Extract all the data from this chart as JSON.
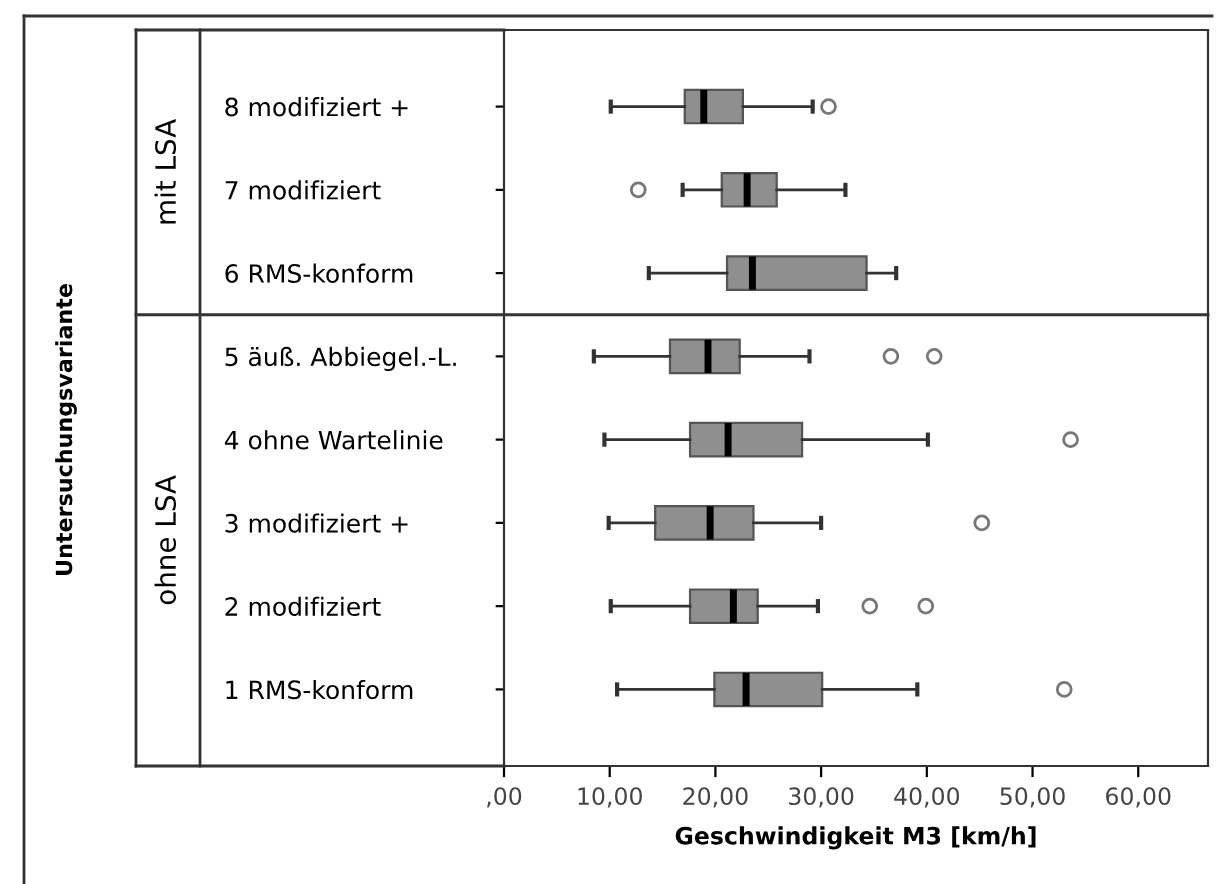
{
  "chart_data": {
    "type": "box",
    "orientation": "horizontal",
    "xlabel": "Geschwindigkeit M3 [km/h]",
    "categories": [
      "8 modifiziert +",
      "7 modifiziert",
      "6 RMS-konform",
      "5 äuß. Abbiegel.-L.",
      "4 ohne Wartelinie",
      "3 modifiziert +",
      "2 modifiziert",
      "1 RMS-konform"
    ],
    "color": "#8f8f8f",
    "boxes": [
      {
        "low": 10.1,
        "q1": 17.1,
        "median": 18.9,
        "q3": 22.6,
        "high": 29.2,
        "outliers": [
          30.7
        ]
      },
      {
        "low": 16.9,
        "q1": 20.6,
        "median": 23.0,
        "q3": 25.8,
        "high": 32.3,
        "outliers": [
          12.7
        ]
      },
      {
        "low": 13.7,
        "q1": 21.1,
        "median": 23.5,
        "q3": 34.3,
        "high": 37.1
      },
      {
        "low": 8.5,
        "q1": 15.7,
        "median": 19.3,
        "q3": 22.3,
        "high": 28.9,
        "outliers": [
          36.6,
          40.7
        ]
      },
      {
        "low": 9.5,
        "q1": 17.6,
        "median": 21.2,
        "q3": 28.2,
        "high": 40.1,
        "outliers": [
          53.6
        ]
      },
      {
        "low": 9.9,
        "q1": 14.3,
        "median": 19.5,
        "q3": 23.6,
        "high": 30.0,
        "outliers": [
          45.2
        ]
      },
      {
        "low": 10.1,
        "q1": 17.6,
        "median": 21.7,
        "q3": 24.0,
        "high": 29.7,
        "outliers": [
          34.6,
          39.9
        ]
      },
      {
        "low": 10.7,
        "q1": 19.9,
        "median": 22.9,
        "q3": 30.1,
        "high": 39.1,
        "outliers": [
          53.0
        ]
      }
    ],
    "annotations": [
      "Untersuchungsvariante",
      "mit LSA",
      "ohne LSA"
    ],
    "xlim": [
      0,
      66.6
    ],
    "xticks": [
      {
        "value": 0,
        "label": ",00"
      },
      {
        "value": 10,
        "label": "10,00"
      },
      {
        "value": 20,
        "label": "20,00"
      },
      {
        "value": 30,
        "label": "30,00"
      },
      {
        "value": 40,
        "label": "40,00"
      },
      {
        "value": 50,
        "label": "50,00"
      },
      {
        "value": 60,
        "label": "60,00"
      }
    ],
    "grid": false
  }
}
